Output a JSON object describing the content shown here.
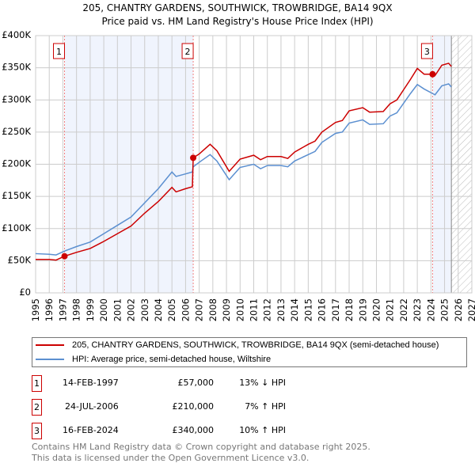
{
  "chart_data": {
    "type": "line",
    "title": "205, CHANTRY GARDENS, SOUTHWICK, TROWBRIDGE, BA14 9QX",
    "subtitle": "Price paid vs. HM Land Registry's House Price Index (HPI)",
    "xlim": [
      1995,
      2027
    ],
    "ylim": [
      0,
      400000
    ],
    "y_ticks": [
      {
        "v": 0,
        "label": "£0"
      },
      {
        "v": 50000,
        "label": "£50K"
      },
      {
        "v": 100000,
        "label": "£100K"
      },
      {
        "v": 150000,
        "label": "£150K"
      },
      {
        "v": 200000,
        "label": "£200K"
      },
      {
        "v": 250000,
        "label": "£250K"
      },
      {
        "v": 300000,
        "label": "£300K"
      },
      {
        "v": 350000,
        "label": "£350K"
      },
      {
        "v": 400000,
        "label": "£400K"
      }
    ],
    "x_ticks": [
      "1995",
      "1996",
      "1997",
      "1998",
      "1999",
      "2000",
      "2001",
      "2002",
      "2003",
      "2004",
      "2005",
      "2006",
      "2007",
      "2008",
      "2009",
      "2010",
      "2011",
      "2012",
      "2013",
      "2014",
      "2015",
      "2016",
      "2017",
      "2018",
      "2019",
      "2020",
      "2021",
      "2022",
      "2023",
      "2024",
      "2025",
      "2026",
      "2027"
    ],
    "grid": true,
    "forecast_from": 2025.5,
    "series": [
      {
        "name": "205, CHANTRY GARDENS, SOUTHWICK, TROWBRIDGE, BA14 9QX (semi-detached house)",
        "color": "#cc0000",
        "x": [
          1995,
          1996,
          1996.5,
          1997.12,
          1998,
          1999,
          2000,
          2001,
          2002,
          2003,
          2004,
          2005,
          2005.3,
          2006,
          2006.5,
          2006.56,
          2007,
          2007.8,
          2008.3,
          2009.2,
          2010,
          2011,
          2011.5,
          2012,
          2013,
          2013.5,
          2014,
          2015,
          2015.5,
          2016,
          2017,
          2017.5,
          2018,
          2019,
          2019.5,
          2020.5,
          2021,
          2021.5,
          2022,
          2022.5,
          2023,
          2023.5,
          2024.12,
          2024.3,
          2024.8,
          2025.3,
          2025.5
        ],
        "y": [
          52000,
          52000,
          51000,
          57000,
          63000,
          69000,
          80000,
          92000,
          104000,
          124000,
          142000,
          164000,
          157000,
          162000,
          165000,
          210000,
          216000,
          231000,
          221000,
          189000,
          208000,
          214000,
          207000,
          212000,
          212000,
          209000,
          219000,
          231000,
          236000,
          250000,
          265000,
          268000,
          283000,
          288000,
          281000,
          282000,
          294000,
          300000,
          316000,
          332000,
          349000,
          340000,
          340000,
          338000,
          354000,
          357000,
          352000
        ]
      },
      {
        "name": "HPI: Average price, semi-detached house, Wiltshire",
        "color": "#5b8fd0",
        "x": [
          1995,
          1996,
          1996.5,
          1997.12,
          1998,
          1999,
          2000,
          2001,
          2002,
          2003,
          2004,
          2005,
          2005.3,
          2006,
          2006.5,
          2006.56,
          2007,
          2007.8,
          2008.3,
          2009.2,
          2010,
          2011,
          2011.5,
          2012,
          2013,
          2013.5,
          2014,
          2015,
          2015.5,
          2016,
          2017,
          2017.5,
          2018,
          2019,
          2019.5,
          2020.5,
          2021,
          2021.5,
          2022,
          2022.5,
          2023,
          2023.5,
          2024.12,
          2024.3,
          2024.8,
          2025.3,
          2025.5
        ],
        "y": [
          61000,
          60000,
          59000,
          65000,
          72000,
          79000,
          92000,
          105000,
          118000,
          140000,
          162000,
          188000,
          181000,
          185000,
          188000,
          196000,
          203000,
          215000,
          205000,
          176000,
          195000,
          200000,
          193000,
          198000,
          198000,
          196000,
          205000,
          215000,
          220000,
          234000,
          248000,
          250000,
          264000,
          269000,
          262000,
          263000,
          275000,
          280000,
          295000,
          310000,
          324000,
          317000,
          310000,
          308000,
          322000,
          325000,
          320000
        ]
      }
    ],
    "sales": [
      {
        "n": "1",
        "x": 1997.12,
        "y": 57000,
        "date": "14-FEB-1997",
        "price": "£57,000",
        "hpi": "13% ↓ HPI"
      },
      {
        "n": "2",
        "x": 2006.56,
        "y": 210000,
        "date": "24-JUL-2006",
        "price": "£210,000",
        "hpi": "7% ↑ HPI"
      },
      {
        "n": "3",
        "x": 2024.12,
        "y": 340000,
        "date": "16-FEB-2024",
        "price": "£340,000",
        "hpi": "10% ↑ HPI"
      }
    ]
  },
  "footer": {
    "line1": "Contains HM Land Registry data © Crown copyright and database right 2025.",
    "line2": "This data is licensed under the Open Government Licence v3.0."
  }
}
